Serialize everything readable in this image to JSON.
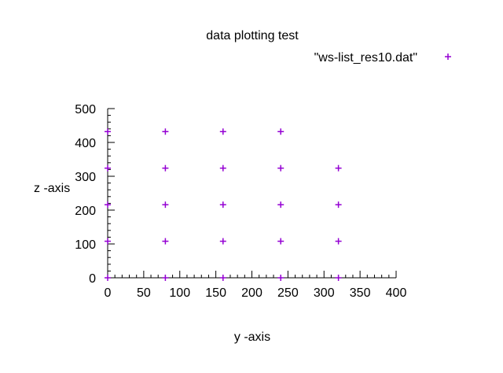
{
  "chart_data": {
    "type": "scatter",
    "title": "data plotting test",
    "xlabel": "y -axis",
    "ylabel": "z -axis",
    "xlim": [
      0,
      400
    ],
    "ylim": [
      0,
      500
    ],
    "x_ticks": [
      "0",
      "50",
      "100",
      "150",
      "200",
      "250",
      "300",
      "350",
      "400"
    ],
    "y_ticks": [
      "0",
      "100",
      "200",
      "300",
      "400",
      "500"
    ],
    "grid": false,
    "legend_position": "top-right",
    "marker": "+",
    "series": [
      {
        "name": "\"ws-list_res10.dat\"",
        "color": "#9400d3",
        "points": [
          [
            0,
            0
          ],
          [
            0,
            108
          ],
          [
            0,
            216
          ],
          [
            0,
            324
          ],
          [
            0,
            432
          ],
          [
            80,
            0
          ],
          [
            80,
            108
          ],
          [
            80,
            216
          ],
          [
            80,
            324
          ],
          [
            80,
            432
          ],
          [
            160,
            0
          ],
          [
            160,
            108
          ],
          [
            160,
            216
          ],
          [
            160,
            324
          ],
          [
            160,
            432
          ],
          [
            240,
            0
          ],
          [
            240,
            108
          ],
          [
            240,
            216
          ],
          [
            240,
            324
          ],
          [
            240,
            432
          ],
          [
            320,
            0
          ],
          [
            320,
            108
          ],
          [
            320,
            216
          ],
          [
            320,
            324
          ]
        ]
      }
    ]
  }
}
